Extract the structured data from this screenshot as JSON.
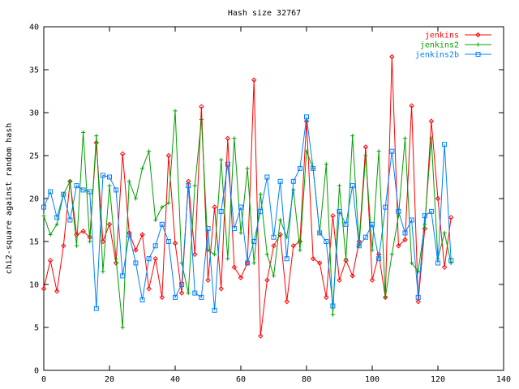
{
  "chart_data": {
    "type": "line",
    "title": "Hash size 32767",
    "xlabel": "",
    "ylabel": "chi2-square against random hash",
    "xlim": [
      0,
      140
    ],
    "ylim": [
      0,
      40
    ],
    "xticks": [
      0,
      20,
      40,
      60,
      80,
      100,
      120,
      140
    ],
    "yticks": [
      0,
      5,
      10,
      15,
      20,
      25,
      30,
      35,
      40
    ],
    "legend_position": "top-right",
    "grid": false,
    "series": [
      {
        "name": "jenkins",
        "color": "#ff0000",
        "marker": "diamond",
        "x": [
          0,
          2,
          4,
          6,
          8,
          10,
          12,
          14,
          16,
          18,
          20,
          22,
          24,
          26,
          28,
          30,
          32,
          34,
          36,
          38,
          40,
          42,
          44,
          46,
          48,
          50,
          52,
          54,
          56,
          58,
          60,
          62,
          64,
          66,
          68,
          70,
          72,
          74,
          76,
          78,
          80,
          82,
          84,
          86,
          88,
          90,
          92,
          94,
          96,
          98,
          100,
          102,
          104,
          106,
          108,
          110,
          112,
          114,
          116,
          118,
          120,
          122,
          124
        ],
        "values": [
          9.5,
          12.8,
          9.2,
          14.5,
          22.0,
          15.8,
          16.2,
          15.5,
          26.5,
          15.0,
          17.0,
          12.5,
          25.2,
          16.0,
          14.0,
          15.8,
          9.5,
          13.0,
          8.5,
          25.0,
          14.8,
          9.0,
          22.0,
          13.5,
          30.7,
          10.5,
          19.0,
          9.5,
          27.0,
          12.0,
          10.8,
          12.5,
          33.8,
          4.0,
          10.5,
          14.5,
          15.8,
          8.0,
          14.5,
          15.0,
          29.0,
          13.0,
          12.5,
          8.5,
          18.0,
          10.5,
          12.8,
          11.0,
          15.0,
          26.0,
          10.5,
          13.5,
          8.5,
          36.5,
          14.5,
          15.2,
          30.8,
          8.0,
          16.5,
          29.0,
          20.0,
          12.0,
          17.8
        ]
      },
      {
        "name": "jenkins2",
        "color": "#00a000",
        "marker": "plus",
        "x": [
          0,
          2,
          4,
          6,
          8,
          10,
          12,
          14,
          16,
          18,
          20,
          22,
          24,
          26,
          28,
          30,
          32,
          34,
          36,
          38,
          40,
          42,
          44,
          46,
          48,
          50,
          52,
          54,
          56,
          58,
          60,
          62,
          64,
          66,
          68,
          70,
          72,
          74,
          76,
          78,
          80,
          82,
          84,
          86,
          88,
          90,
          92,
          94,
          96,
          98,
          100,
          102,
          104,
          106,
          108,
          110,
          112,
          114,
          116,
          118,
          120,
          122,
          124
        ],
        "values": [
          18.0,
          15.8,
          17.0,
          20.5,
          22.0,
          14.5,
          27.7,
          15.0,
          27.3,
          11.5,
          21.5,
          13.0,
          5.0,
          22.0,
          20.0,
          23.5,
          25.5,
          17.5,
          19.0,
          19.5,
          30.2,
          12.5,
          9.0,
          21.5,
          29.2,
          14.0,
          13.5,
          24.5,
          13.0,
          27.0,
          16.0,
          23.5,
          12.5,
          20.5,
          13.5,
          11.0,
          17.5,
          15.5,
          21.0,
          14.0,
          25.5,
          23.5,
          16.0,
          24.0,
          6.5,
          21.5,
          13.0,
          27.3,
          14.5,
          25.0,
          14.0,
          25.5,
          8.5,
          13.5,
          18.0,
          27.0,
          12.5,
          11.5,
          17.0,
          27.0,
          13.0,
          16.0,
          12.5
        ]
      },
      {
        "name": "jenkins2b",
        "color": "#0080ff",
        "marker": "square",
        "x": [
          0,
          2,
          4,
          6,
          8,
          10,
          12,
          14,
          16,
          18,
          20,
          22,
          24,
          26,
          28,
          30,
          32,
          34,
          36,
          38,
          40,
          42,
          44,
          46,
          48,
          50,
          52,
          54,
          56,
          58,
          60,
          62,
          64,
          66,
          68,
          70,
          72,
          74,
          76,
          78,
          80,
          82,
          84,
          86,
          88,
          90,
          92,
          94,
          96,
          98,
          100,
          102,
          104,
          106,
          108,
          110,
          112,
          114,
          116,
          118,
          120,
          122,
          124
        ],
        "values": [
          19.0,
          20.8,
          17.8,
          20.5,
          17.5,
          21.5,
          21.0,
          20.8,
          7.2,
          22.7,
          22.5,
          21.0,
          11.0,
          15.8,
          12.5,
          8.2,
          13.0,
          14.5,
          17.0,
          15.0,
          8.5,
          10.0,
          21.5,
          9.0,
          8.5,
          16.5,
          7.0,
          18.5,
          24.0,
          16.5,
          19.0,
          12.5,
          15.0,
          18.5,
          22.5,
          15.5,
          22.0,
          13.0,
          22.0,
          23.5,
          29.5,
          23.5,
          16.0,
          15.0,
          7.5,
          18.5,
          17.0,
          21.5,
          14.5,
          15.5,
          17.0,
          13.0,
          19.0,
          25.5,
          18.5,
          16.0,
          17.5,
          8.5,
          18.0,
          18.5,
          12.5,
          26.3,
          12.8
        ]
      }
    ]
  }
}
